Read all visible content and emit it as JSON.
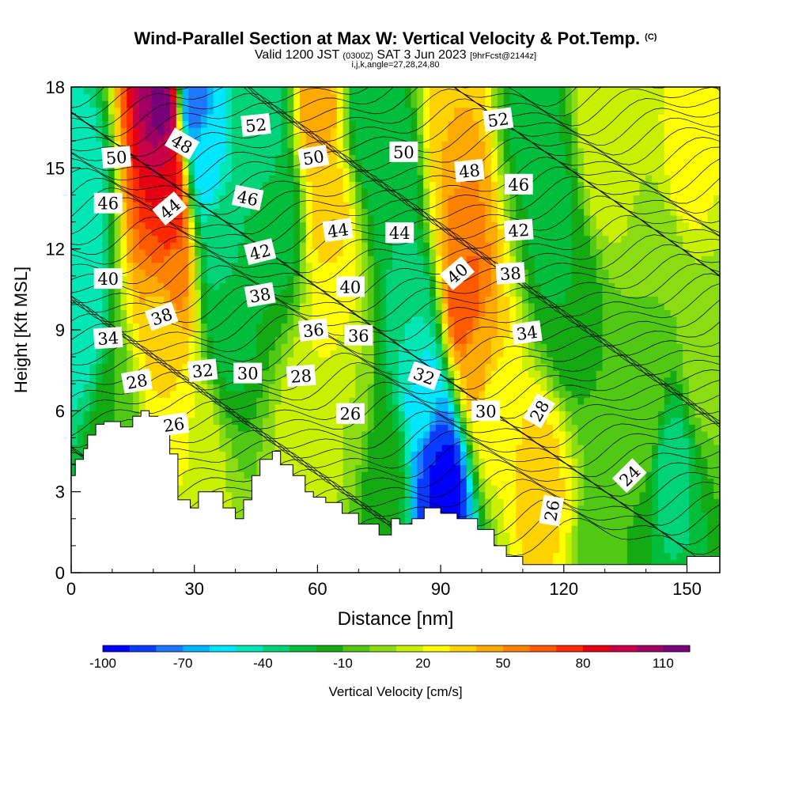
{
  "header": {
    "title": "Wind-Parallel Section at Max W: Vertical Velocity & Pot.Temp.",
    "copyright": "(C)",
    "valid_pre": "Valid 1200 JST",
    "valid_z": "(0300Z)",
    "valid_post": "SAT 3 Jun 2023",
    "forecast": "[9hrFcst@2144z]",
    "params": "i,j,k,angle=27,28,24,80"
  },
  "chart_data": {
    "type": "heatmap",
    "title": "Wind-Parallel Section at Max W: Vertical Velocity & Pot.Temp.",
    "xlabel": "Distance [nm]",
    "ylabel": "Height [Kft MSL]",
    "xlim": [
      0,
      158
    ],
    "ylim": [
      0,
      18
    ],
    "x_ticks": [
      0,
      30,
      60,
      90,
      120,
      150
    ],
    "y_ticks": [
      0,
      3,
      6,
      9,
      12,
      15,
      18
    ],
    "colorbar": {
      "label": "Vertical Velocity [cm/s]",
      "min": -100,
      "max": 120,
      "step": 10,
      "tick_labels": [
        "-100",
        "-70",
        "-40",
        "-10",
        "20",
        "50",
        "80",
        "110"
      ],
      "colors": [
        "#0000ff",
        "#0a3cff",
        "#1e78ff",
        "#00b4ff",
        "#00e6ff",
        "#00e6b4",
        "#00d278",
        "#00be3c",
        "#14aa14",
        "#50c814",
        "#8cdc14",
        "#c8f000",
        "#ffff00",
        "#ffd200",
        "#ffaa00",
        "#ff8200",
        "#ff5a00",
        "#ff2800",
        "#e60014",
        "#c80046",
        "#a00064",
        "#780078"
      ]
    },
    "terrain_kft": [
      [
        0,
        3.6
      ],
      [
        1,
        3.6
      ],
      [
        1,
        4.2
      ],
      [
        3,
        4.2
      ],
      [
        3,
        4.6
      ],
      [
        4,
        4.6
      ],
      [
        4,
        5.1
      ],
      [
        6,
        5.1
      ],
      [
        6,
        5.5
      ],
      [
        8,
        5.5
      ],
      [
        8,
        5.6
      ],
      [
        12,
        5.6
      ],
      [
        12,
        5.4
      ],
      [
        15,
        5.4
      ],
      [
        15,
        5.8
      ],
      [
        17,
        5.8
      ],
      [
        17,
        6.0
      ],
      [
        19,
        6.0
      ],
      [
        19,
        5.8
      ],
      [
        22,
        5.8
      ],
      [
        22,
        5.4
      ],
      [
        24,
        5.4
      ],
      [
        24,
        4.4
      ],
      [
        26,
        4.4
      ],
      [
        26,
        2.7
      ],
      [
        29,
        2.7
      ],
      [
        29,
        2.4
      ],
      [
        31,
        2.4
      ],
      [
        31,
        3.0
      ],
      [
        37,
        3.0
      ],
      [
        37,
        2.4
      ],
      [
        40,
        2.4
      ],
      [
        40,
        2.0
      ],
      [
        42,
        2.0
      ],
      [
        42,
        2.7
      ],
      [
        44,
        2.7
      ],
      [
        44,
        3.6
      ],
      [
        46,
        3.6
      ],
      [
        46,
        4.2
      ],
      [
        49,
        4.2
      ],
      [
        49,
        4.5
      ],
      [
        51,
        4.5
      ],
      [
        51,
        4.0
      ],
      [
        54,
        4.0
      ],
      [
        54,
        3.6
      ],
      [
        57,
        3.6
      ],
      [
        57,
        3.0
      ],
      [
        59,
        3.0
      ],
      [
        59,
        2.8
      ],
      [
        62,
        2.8
      ],
      [
        62,
        2.6
      ],
      [
        66,
        2.6
      ],
      [
        66,
        2.2
      ],
      [
        70,
        2.2
      ],
      [
        70,
        1.8
      ],
      [
        75,
        1.8
      ],
      [
        75,
        1.4
      ],
      [
        78,
        1.4
      ],
      [
        78,
        2.0
      ],
      [
        80,
        2.0
      ],
      [
        80,
        1.8
      ],
      [
        83,
        1.8
      ],
      [
        83,
        2.0
      ],
      [
        86,
        2.0
      ],
      [
        86,
        2.4
      ],
      [
        90,
        2.4
      ],
      [
        90,
        2.2
      ],
      [
        94,
        2.2
      ],
      [
        94,
        2.0
      ],
      [
        99,
        2.0
      ],
      [
        99,
        1.6
      ],
      [
        103,
        1.6
      ],
      [
        103,
        1.0
      ],
      [
        106,
        1.0
      ],
      [
        106,
        0.6
      ],
      [
        110,
        0.6
      ],
      [
        110,
        0.3
      ],
      [
        125,
        0.3
      ],
      [
        125,
        0.3
      ],
      [
        150,
        0.3
      ],
      [
        150,
        0.6
      ],
      [
        158,
        0.6
      ]
    ],
    "contour_labels": [
      {
        "text": "52",
        "x": 45,
        "y": 16.6,
        "angle": -6
      },
      {
        "text": "48",
        "x": 27,
        "y": 15.9,
        "angle": 30
      },
      {
        "text": "50",
        "x": 11,
        "y": 15.4,
        "angle": -4
      },
      {
        "text": "50",
        "x": 59,
        "y": 15.4,
        "angle": -10
      },
      {
        "text": "50",
        "x": 81,
        "y": 15.6,
        "angle": 0
      },
      {
        "text": "52",
        "x": 104,
        "y": 16.8,
        "angle": -8
      },
      {
        "text": "48",
        "x": 97,
        "y": 14.9,
        "angle": -6
      },
      {
        "text": "46",
        "x": 109,
        "y": 14.4,
        "angle": 0
      },
      {
        "text": "46",
        "x": 9,
        "y": 13.7,
        "angle": 0
      },
      {
        "text": "46",
        "x": 43,
        "y": 13.9,
        "angle": 12
      },
      {
        "text": "44",
        "x": 24,
        "y": 13.5,
        "angle": -40
      },
      {
        "text": "44",
        "x": 65,
        "y": 12.7,
        "angle": -8
      },
      {
        "text": "44",
        "x": 80,
        "y": 12.6,
        "angle": 0
      },
      {
        "text": "42",
        "x": 109,
        "y": 12.7,
        "angle": -4
      },
      {
        "text": "42",
        "x": 46,
        "y": 11.9,
        "angle": -14
      },
      {
        "text": "40",
        "x": 94,
        "y": 11.1,
        "angle": -40
      },
      {
        "text": "38",
        "x": 107,
        "y": 11.1,
        "angle": -4
      },
      {
        "text": "40",
        "x": 9,
        "y": 10.9,
        "angle": 0
      },
      {
        "text": "40",
        "x": 68,
        "y": 10.6,
        "angle": 0
      },
      {
        "text": "38",
        "x": 46,
        "y": 10.3,
        "angle": -10
      },
      {
        "text": "38",
        "x": 22,
        "y": 9.5,
        "angle": -20
      },
      {
        "text": "36",
        "x": 59,
        "y": 9.0,
        "angle": -6
      },
      {
        "text": "36",
        "x": 70,
        "y": 8.8,
        "angle": 0
      },
      {
        "text": "34",
        "x": 9,
        "y": 8.7,
        "angle": -4
      },
      {
        "text": "34",
        "x": 111,
        "y": 8.9,
        "angle": -8
      },
      {
        "text": "32",
        "x": 32,
        "y": 7.5,
        "angle": -6
      },
      {
        "text": "30",
        "x": 43,
        "y": 7.4,
        "angle": 0
      },
      {
        "text": "28",
        "x": 56,
        "y": 7.3,
        "angle": -4
      },
      {
        "text": "32",
        "x": 86,
        "y": 7.3,
        "angle": 20
      },
      {
        "text": "28",
        "x": 16,
        "y": 7.1,
        "angle": -10
      },
      {
        "text": "30",
        "x": 101,
        "y": 6.0,
        "angle": 0
      },
      {
        "text": "28",
        "x": 114,
        "y": 6.0,
        "angle": -60
      },
      {
        "text": "26",
        "x": 68,
        "y": 5.9,
        "angle": 0
      },
      {
        "text": "26",
        "x": 25,
        "y": 5.5,
        "angle": -8
      },
      {
        "text": "24",
        "x": 136,
        "y": 3.6,
        "angle": -45
      },
      {
        "text": "26",
        "x": 117,
        "y": 2.3,
        "angle": -80
      }
    ],
    "velocity_features": [
      {
        "x": 22,
        "y": 17,
        "w": 112
      },
      {
        "x": 23,
        "y": 15,
        "w": 90
      },
      {
        "x": 24,
        "y": 13,
        "w": 75
      },
      {
        "x": 25,
        "y": 11,
        "w": 55
      },
      {
        "x": 23,
        "y": 9,
        "w": 30
      },
      {
        "x": 2,
        "y": 14,
        "w": -50
      },
      {
        "x": 2,
        "y": 9,
        "w": -45
      },
      {
        "x": 30,
        "y": 17.5,
        "w": -75
      },
      {
        "x": 33,
        "y": 15,
        "w": -55
      },
      {
        "x": 36,
        "y": 12,
        "w": -35
      },
      {
        "x": 38,
        "y": 9.5,
        "w": -25
      },
      {
        "x": 47,
        "y": 17,
        "w": -40
      },
      {
        "x": 51,
        "y": 13,
        "w": -25
      },
      {
        "x": 60,
        "y": 17,
        "w": 45
      },
      {
        "x": 63,
        "y": 13,
        "w": 35
      },
      {
        "x": 64,
        "y": 10,
        "w": 25
      },
      {
        "x": 67,
        "y": 7,
        "w": 10
      },
      {
        "x": 30,
        "y": 4.5,
        "w": 20
      },
      {
        "x": 58,
        "y": 5.0,
        "w": 20
      },
      {
        "x": 73,
        "y": 17,
        "w": -30
      },
      {
        "x": 79,
        "y": 14,
        "w": -30
      },
      {
        "x": 83,
        "y": 9.5,
        "w": -40
      },
      {
        "x": 86,
        "y": 6.5,
        "w": -55
      },
      {
        "x": 89,
        "y": 4,
        "w": -90
      },
      {
        "x": 91,
        "y": 3,
        "w": -100
      },
      {
        "x": 93,
        "y": 16,
        "w": 40
      },
      {
        "x": 95,
        "y": 13,
        "w": 55
      },
      {
        "x": 96,
        "y": 10,
        "w": 70
      },
      {
        "x": 99,
        "y": 8,
        "w": 45
      },
      {
        "x": 103,
        "y": 6,
        "w": 25
      },
      {
        "x": 112,
        "y": 17,
        "w": -25
      },
      {
        "x": 117,
        "y": 13,
        "w": -25
      },
      {
        "x": 121,
        "y": 10,
        "w": -20
      },
      {
        "x": 130,
        "y": 16,
        "w": 20
      },
      {
        "x": 150,
        "y": 15,
        "w": 25
      },
      {
        "x": 145,
        "y": 11,
        "w": 0
      },
      {
        "x": 114,
        "y": 3.5,
        "w": 35
      },
      {
        "x": 132,
        "y": 2,
        "w": -10
      },
      {
        "x": 146,
        "y": 4,
        "w": -35
      },
      {
        "x": 154,
        "y": 8,
        "w": 5
      },
      {
        "x": 10,
        "y": 5,
        "w": -10
      },
      {
        "x": 77,
        "y": 3.5,
        "w": -15
      },
      {
        "x": 140,
        "y": 6,
        "w": 0
      }
    ]
  }
}
